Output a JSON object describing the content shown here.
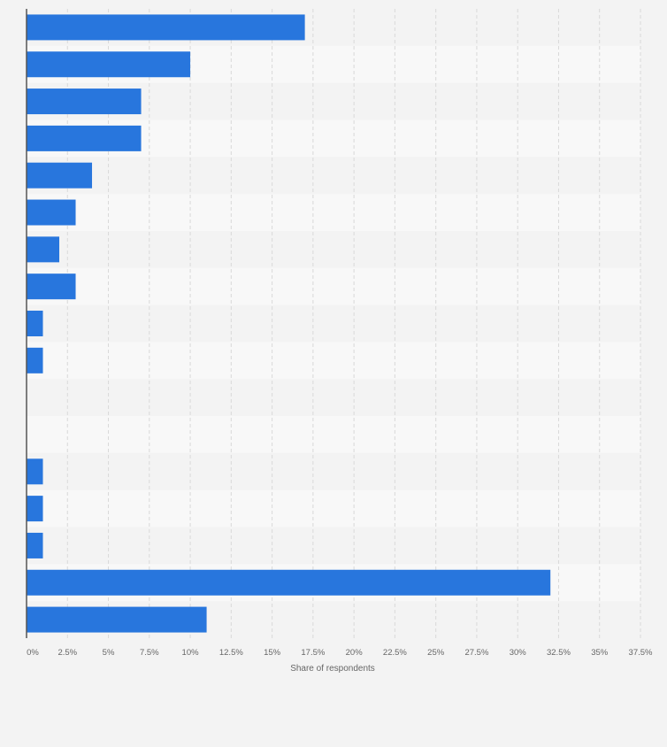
{
  "chart_data": {
    "type": "bar",
    "orientation": "horizontal",
    "categories": [
      "",
      "",
      "",
      "",
      "",
      "",
      "",
      "",
      "",
      "",
      "",
      "",
      "",
      "",
      "",
      "",
      ""
    ],
    "values": [
      17,
      10,
      7,
      7,
      4,
      3,
      2,
      3,
      1,
      1,
      0,
      0,
      1,
      1,
      1,
      32,
      11
    ],
    "xlim": [
      0,
      37.5
    ],
    "xticks": [
      0,
      2.5,
      5,
      7.5,
      10,
      12.5,
      15,
      17.5,
      20,
      22.5,
      25,
      27.5,
      30,
      32.5,
      35,
      37.5
    ],
    "xtick_labels": [
      "0%",
      "2.5%",
      "5%",
      "7.5%",
      "10%",
      "12.5%",
      "15%",
      "17.5%",
      "20%",
      "22.5%",
      "25%",
      "27.5%",
      "30%",
      "32.5%",
      "35%",
      "37.5%"
    ],
    "xlabel": "Share of respondents",
    "ylabel": "",
    "title": "",
    "grid": true,
    "colors": {
      "bar": "#2876dd",
      "background": "#f3f3f3",
      "band_light": "#f8f8f8",
      "band_dark": "#f3f3f3",
      "gridline": "#d9d9d9",
      "axis": "#555555",
      "tick_text": "#666666"
    }
  }
}
